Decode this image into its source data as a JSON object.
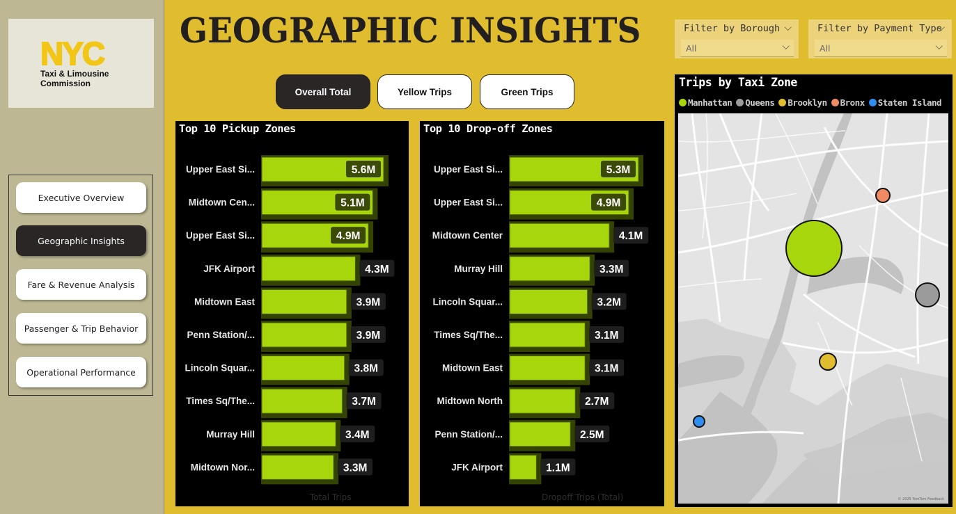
{
  "sidebar": {
    "logo": {
      "mark": "NYC",
      "line1": "Taxi & Limousine",
      "line2": "Commission"
    },
    "nav": [
      {
        "label": "Executive Overview",
        "active": false
      },
      {
        "label": "Geographic Insights",
        "active": true
      },
      {
        "label": "Fare & Revenue Analysis",
        "active": false
      },
      {
        "label": "Passenger & Trip Behavior",
        "active": false
      },
      {
        "label": "Operational Performance",
        "active": false
      }
    ]
  },
  "header": {
    "title": "GEOGRAPHIC INSIGHTS"
  },
  "toggles": [
    {
      "label": "Overall Total",
      "active": true
    },
    {
      "label": "Yellow Trips",
      "active": false
    },
    {
      "label": "Green Trips",
      "active": false
    }
  ],
  "filters": [
    {
      "label": "Filter by Borough",
      "value": "All"
    },
    {
      "label": "Filter by Payment Type",
      "value": "All"
    }
  ],
  "colors": {
    "bar": "#a6d60b",
    "bar_shadow": "#5e7a08",
    "label_bg": "#3b4a06",
    "background": "#e0bd2e"
  },
  "chart_data": [
    {
      "type": "bar",
      "orientation": "horizontal",
      "title": "Top 10 Pickup Zones",
      "xlabel": "Total Trips",
      "categories": [
        "Upper East Si...",
        "Midtown Cen...",
        "Upper East Si...",
        "JFK Airport",
        "Midtown East",
        "Penn Station/...",
        "Lincoln Squar...",
        "Times Sq/The...",
        "Murray Hill",
        "Midtown Nor..."
      ],
      "values": [
        5.6,
        5.1,
        4.9,
        4.3,
        3.9,
        3.9,
        3.8,
        3.7,
        3.4,
        3.3
      ],
      "data_labels": [
        "5.6M",
        "5.1M",
        "4.9M",
        "4.3M",
        "3.9M",
        "3.9M",
        "3.8M",
        "3.7M",
        "3.4M",
        "3.3M"
      ],
      "unit": "M"
    },
    {
      "type": "bar",
      "orientation": "horizontal",
      "title": "Top 10 Drop-off Zones",
      "xlabel": "Dropoff Trips (Total)",
      "categories": [
        "Upper East Si...",
        "Upper East Si...",
        "Midtown Center",
        "Murray Hill",
        "Lincoln Squar...",
        "Times Sq/The...",
        "Midtown East",
        "Midtown North",
        "Penn Station/...",
        "JFK Airport"
      ],
      "values": [
        5.3,
        4.9,
        4.1,
        3.3,
        3.2,
        3.1,
        3.1,
        2.7,
        2.5,
        1.1
      ],
      "data_labels": [
        "5.3M",
        "4.9M",
        "4.1M",
        "3.3M",
        "3.2M",
        "3.1M",
        "3.1M",
        "2.7M",
        "2.5M",
        "1.1M"
      ],
      "unit": "M"
    }
  ],
  "map": {
    "title": "Trips by Taxi Zone",
    "legend": [
      {
        "name": "Manhattan",
        "color": "#a6d60b"
      },
      {
        "name": "Queens",
        "color": "#9b9b9b"
      },
      {
        "name": "Brooklyn",
        "color": "#e0bd2e"
      },
      {
        "name": "Bronx",
        "color": "#ef8b62"
      },
      {
        "name": "Staten Island",
        "color": "#2f8ef0"
      }
    ],
    "credit": "© 2025 TomTom  Feedback"
  }
}
